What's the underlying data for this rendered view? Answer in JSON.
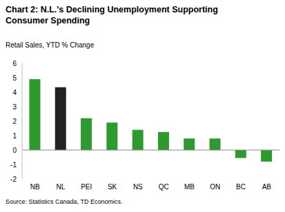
{
  "chart_data": {
    "type": "bar",
    "title": "Chart 2: N.L.'s Declining Unemployment Supporting Consumer Spending",
    "subtitle": "Retail Sales, YTD % Change",
    "source": "Source: Statistics Canada, TD Economics.",
    "categories": [
      "NB",
      "NL",
      "PEI",
      "SK",
      "NS",
      "QC",
      "MB",
      "ON",
      "BC",
      "AB"
    ],
    "values": [
      4.9,
      4.35,
      2.2,
      1.9,
      1.4,
      1.25,
      0.8,
      0.8,
      -0.55,
      -0.8
    ],
    "colors": [
      "#2e9a2e",
      "#222222",
      "#2e9a2e",
      "#2e9a2e",
      "#2e9a2e",
      "#2e9a2e",
      "#2e9a2e",
      "#2e9a2e",
      "#2e9a2e",
      "#2e9a2e"
    ],
    "ylim": [
      -2,
      6
    ],
    "yticks": [
      -2,
      -1,
      0,
      1,
      2,
      3,
      4,
      5,
      6
    ],
    "grid": false
  }
}
